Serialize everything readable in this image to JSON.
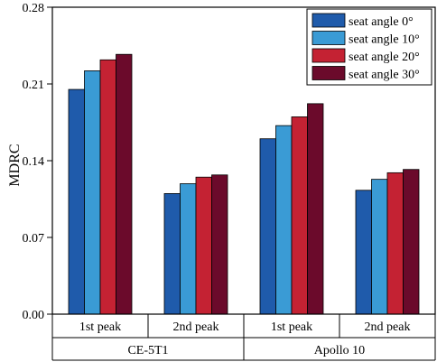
{
  "chart_data": {
    "type": "bar",
    "ylabel": "MDRC",
    "ylim": [
      0,
      0.28
    ],
    "yticks": [
      "0.00",
      "0.07",
      "0.14",
      "0.21",
      "0.28"
    ],
    "categories": [
      "1st peak",
      "2nd peak",
      "1st peak",
      "2nd peak"
    ],
    "groups": [
      {
        "label": "CE-5T1",
        "categories": [
          0,
          1
        ]
      },
      {
        "label": "Apollo 10",
        "categories": [
          2,
          3
        ]
      }
    ],
    "series": [
      {
        "name": "seat angle 0°",
        "color": "#1f5bab",
        "values": [
          0.205,
          0.11,
          0.16,
          0.113
        ]
      },
      {
        "name": "seat angle 10°",
        "color": "#3a9bd5",
        "values": [
          0.222,
          0.119,
          0.172,
          0.123
        ]
      },
      {
        "name": "seat angle 20°",
        "color": "#c42233",
        "values": [
          0.232,
          0.125,
          0.18,
          0.129
        ]
      },
      {
        "name": "seat angle 30°",
        "color": "#6b0a2b",
        "values": [
          0.237,
          0.127,
          0.192,
          0.132
        ]
      }
    ],
    "legend_position": "top-right",
    "grid": false
  }
}
